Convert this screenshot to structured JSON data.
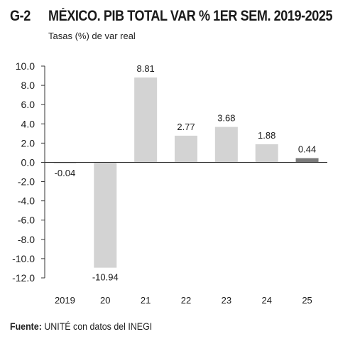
{
  "header": {
    "figure_id": "G-2",
    "title": "MÉXICO. PIB TOTAL VAR % 1ER SEM. 2019-2025",
    "subtitle": "Tasas (%) de var real"
  },
  "source": {
    "label": "Fuente:",
    "text": "UNITÉ con datos del INEGI"
  },
  "chart_data": {
    "type": "bar",
    "title": "MÉXICO. PIB TOTAL VAR % 1ER SEM. 2019-2025",
    "ylabel": "Tasas (%) de var real",
    "categories": [
      "2019",
      "20",
      "21",
      "22",
      "23",
      "24",
      "25"
    ],
    "values": [
      -0.04,
      -10.94,
      8.81,
      2.77,
      3.68,
      1.88,
      0.44
    ],
    "data_labels": [
      "-0.04",
      "-10.94",
      "8.81",
      "2.77",
      "3.68",
      "1.88",
      "0.44"
    ],
    "ylim": [
      -12,
      10
    ],
    "yticks": [
      "10.0",
      "8.0",
      "6.0",
      "4.0",
      "2.0",
      "0.0",
      "-2.0",
      "-4.0",
      "-6.0",
      "-8.0",
      "-10.0",
      "-12.0"
    ],
    "ytick_values": [
      10,
      8,
      6,
      4,
      2,
      0,
      -2,
      -4,
      -6,
      -8,
      -10,
      -12
    ],
    "grid": false,
    "colors": {
      "bar": "#d3d3d3",
      "highlight": "#7a7a7a",
      "axis": "#333333"
    },
    "highlight_index": 6
  }
}
